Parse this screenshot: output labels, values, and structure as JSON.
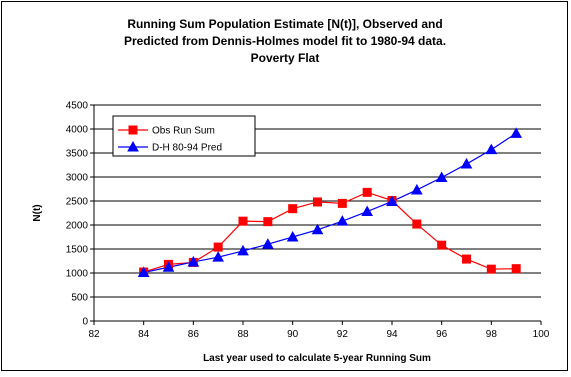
{
  "chart_data": {
    "type": "line",
    "title_lines": [
      "Running Sum Population Estimate [N(t)], Observed and",
      "Predicted from Dennis-Holmes model fit to 1980-94 data.",
      "Poverty Flat"
    ],
    "xlabel": "Last year used to calculate 5-year Running Sum",
    "ylabel": "N(t)",
    "xlim": [
      82,
      100
    ],
    "ylim": [
      0,
      4500
    ],
    "x_ticks": [
      "82",
      "84",
      "86",
      "88",
      "90",
      "92",
      "94",
      "96",
      "98",
      "100"
    ],
    "y_ticks": [
      "0",
      "500",
      "1000",
      "1500",
      "2000",
      "2500",
      "3000",
      "3500",
      "4000",
      "4500"
    ],
    "grid": "horizontal",
    "legend_position": "top-left",
    "series": [
      {
        "name": "Obs Run Sum",
        "color": "#ff0000",
        "marker": "square",
        "x": [
          84,
          85,
          86,
          87,
          88,
          89,
          90,
          91,
          92,
          93,
          94,
          95,
          96,
          97,
          98,
          99
        ],
        "y": [
          1020,
          1180,
          1220,
          1540,
          2080,
          2070,
          2340,
          2480,
          2450,
          2680,
          2510,
          2020,
          1580,
          1290,
          1080,
          1090
        ]
      },
      {
        "name": "D-H 80-94 Pred",
        "color": "#0000ff",
        "marker": "triangle",
        "x": [
          84,
          85,
          86,
          87,
          88,
          89,
          90,
          91,
          92,
          93,
          94,
          95,
          96,
          97,
          98,
          99
        ],
        "y": [
          1010,
          1120,
          1230,
          1330,
          1460,
          1600,
          1750,
          1900,
          2080,
          2280,
          2490,
          2730,
          2990,
          3270,
          3570,
          3910
        ]
      }
    ]
  }
}
